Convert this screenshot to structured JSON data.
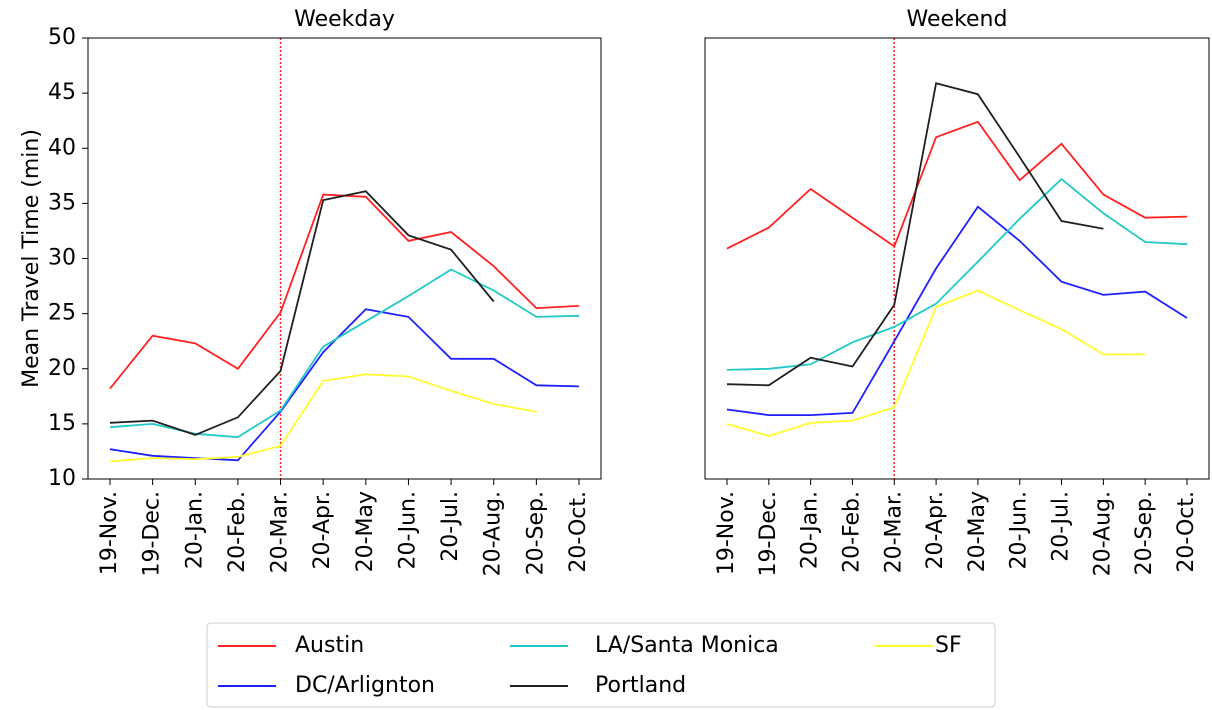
{
  "chart_data": [
    {
      "type": "line",
      "title": "Weekday",
      "ylabel": "Mean Travel Time (min)",
      "categories": [
        "19-Nov.",
        "19-Dec.",
        "20-Jan.",
        "20-Feb.",
        "20-Mar.",
        "20-Apr.",
        "20-May",
        "20-Jun.",
        "20-Jul.",
        "20-Aug.",
        "20-Sep.",
        "20-Oct."
      ],
      "ylim": [
        10,
        50
      ],
      "yticks": [
        10,
        15,
        20,
        25,
        30,
        35,
        40,
        45,
        50
      ],
      "vline_category": "20-Mar.",
      "series": [
        {
          "name": "Austin",
          "color": "#ff2020",
          "values": [
            18.2,
            23.0,
            22.3,
            20.0,
            25.1,
            35.8,
            35.6,
            31.6,
            32.4,
            29.3,
            25.5,
            25.7
          ]
        },
        {
          "name": "DC/Arlignton",
          "color": "#2020ff",
          "values": [
            12.7,
            12.1,
            11.9,
            11.7,
            16.1,
            21.5,
            25.4,
            24.7,
            20.9,
            20.9,
            18.5,
            18.4
          ]
        },
        {
          "name": "LA/Santa Monica",
          "color": "#20c8c8",
          "values": [
            14.7,
            15.0,
            14.1,
            13.8,
            16.2,
            22.0,
            24.3,
            26.6,
            29.0,
            27.1,
            24.7,
            24.8
          ]
        },
        {
          "name": "Portland",
          "color": "#202020",
          "values": [
            15.1,
            15.3,
            14.0,
            15.6,
            19.8,
            35.3,
            36.1,
            32.1,
            30.8,
            26.1,
            null,
            null
          ]
        },
        {
          "name": "SF",
          "color": "#ffff30",
          "values": [
            11.6,
            11.9,
            11.8,
            12.0,
            13.0,
            18.9,
            19.5,
            19.3,
            18.0,
            16.8,
            16.1,
            null
          ]
        }
      ]
    },
    {
      "type": "line",
      "title": "Weekend",
      "categories": [
        "19-Nov.",
        "19-Dec.",
        "20-Jan.",
        "20-Feb.",
        "20-Mar.",
        "20-Apr.",
        "20-May",
        "20-Jun.",
        "20-Jul.",
        "20-Aug.",
        "20-Sep.",
        "20-Oct."
      ],
      "ylim": [
        10,
        50
      ],
      "vline_category": "20-Mar.",
      "series": [
        {
          "color": "#ff2020",
          "values": [
            30.9,
            32.8,
            36.3,
            33.7,
            31.1,
            41.0,
            42.4,
            37.1,
            40.4,
            35.8,
            33.7,
            33.8
          ]
        },
        {
          "color": "#2020ff",
          "values": [
            16.3,
            15.8,
            15.8,
            16.0,
            22.5,
            29.1,
            34.7,
            31.6,
            27.9,
            26.7,
            27.0,
            24.6
          ]
        },
        {
          "color": "#20c8c8",
          "values": [
            19.9,
            20.0,
            20.4,
            22.4,
            23.8,
            25.9,
            29.7,
            33.6,
            37.2,
            34.1,
            31.5,
            31.3
          ]
        },
        {
          "color": "#202020",
          "values": [
            18.6,
            18.5,
            21.0,
            20.2,
            25.8,
            45.9,
            44.9,
            39.2,
            33.4,
            32.7,
            null,
            null
          ]
        },
        {
          "color": "#ffff30",
          "values": [
            15.0,
            13.9,
            15.1,
            15.3,
            16.5,
            25.6,
            27.1,
            25.3,
            23.6,
            21.3,
            21.3,
            null
          ]
        }
      ]
    }
  ]
}
